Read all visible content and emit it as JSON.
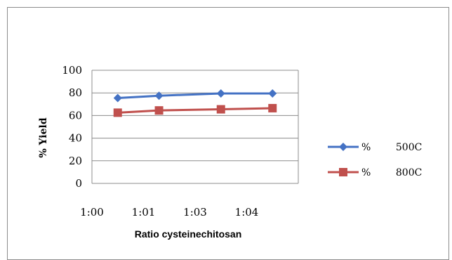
{
  "chart_data": {
    "type": "line",
    "title": "",
    "xlabel": "Ratio cysteinechitosan",
    "ylabel": "% Yield",
    "xlim": [
      0,
      4
    ],
    "ylim": [
      0,
      100
    ],
    "x_ticks": [
      "1:00",
      "1:01",
      "1:03",
      "1:04"
    ],
    "y_ticks": [
      0,
      20,
      40,
      60,
      80,
      100
    ],
    "grid": true,
    "legend": "right",
    "x": [
      0.5,
      1.3,
      2.5,
      3.5
    ],
    "series": [
      {
        "name": "%        500C",
        "values": [
          75.5,
          77.5,
          79.5,
          79.5
        ],
        "color": "#4472C4",
        "marker": "diamond"
      },
      {
        "name": "%        800C",
        "values": [
          62.5,
          64.5,
          65.5,
          66.5
        ],
        "color": "#C0504D",
        "marker": "square"
      }
    ]
  }
}
